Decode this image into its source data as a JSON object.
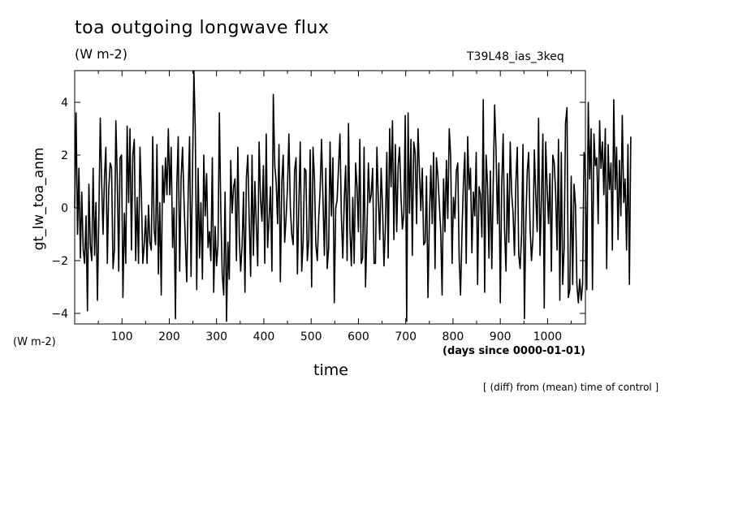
{
  "header": {
    "title": "toa outgoing longwave flux",
    "units": "(W m-2)",
    "run_name": "T39L48_ias_3keq"
  },
  "footer": {
    "y_units_bottom": "(W m-2)",
    "x_units": "(days since 0000-01-01)",
    "x_label": "time",
    "note": "[ (diff) from (mean) time of control ]"
  },
  "chart_data": {
    "type": "line",
    "title": "toa outgoing longwave flux",
    "subtitle": "(W m-2)",
    "xlabel": "time",
    "ylabel": "gt_lw_toa_anm",
    "xlim": [
      0,
      1080
    ],
    "ylim": [
      -4.4,
      5.2
    ],
    "x_ticks": [
      100,
      200,
      300,
      400,
      500,
      600,
      700,
      800,
      900,
      1000
    ],
    "y_ticks": [
      -4,
      -2,
      0,
      2,
      4
    ],
    "grid": false,
    "x_step": 3,
    "series": [
      {
        "values": [
          0.0,
          3.6,
          -1.0,
          1.5,
          -1.9,
          0.6,
          -1.6,
          -2.1,
          -0.3,
          -3.9,
          0.9,
          -1.4,
          -2.0,
          1.5,
          -1.8,
          0.2,
          -3.5,
          -0.4,
          3.4,
          1.0,
          -1.0,
          1.2,
          2.3,
          -2.1,
          0.7,
          1.7,
          1.5,
          -2.3,
          -1.6,
          3.3,
          1.2,
          -2.4,
          1.9,
          2.0,
          -3.4,
          -0.2,
          -2.1,
          3.1,
          0.2,
          3.0,
          -1.6,
          2.0,
          2.6,
          -2.0,
          0.4,
          -2.1,
          2.3,
          0.6,
          -2.1,
          -1.4,
          -0.3,
          -2.1,
          0.1,
          -1.3,
          -1.6,
          2.7,
          -0.8,
          -1.4,
          2.4,
          -2.5,
          0.2,
          -3.3,
          1.6,
          0.2,
          1.9,
          0.5,
          3.0,
          0.5,
          2.3,
          -1.5,
          0.0,
          -4.2,
          0.9,
          2.7,
          -2.4,
          1.1,
          2.3,
          0.4,
          -1.3,
          -2.8,
          0.6,
          2.7,
          -2.6,
          1.2,
          5.2,
          3.0,
          -3.1,
          1.5,
          -1.9,
          0.2,
          -2.7,
          2.0,
          -0.3,
          1.3,
          -1.5,
          -0.9,
          -2.0,
          1.9,
          -3.2,
          -0.7,
          -2.2,
          -1.4,
          3.6,
          -0.2,
          -2.5,
          -3.3,
          0.6,
          -4.3,
          -1.3,
          -2.7,
          1.8,
          -0.2,
          0.8,
          1.1,
          -2.0,
          2.3,
          -1.1,
          -2.4,
          -1.4,
          0.6,
          -3.2,
          1.1,
          2.0,
          -0.4,
          -2.6,
          2.0,
          -1.8,
          1.0,
          -0.6,
          -2.2,
          2.5,
          0.3,
          -0.5,
          1.6,
          -2.1,
          2.8,
          -1.5,
          -0.4,
          0.8,
          -2.4,
          4.3,
          1.6,
          1.0,
          -0.6,
          2.4,
          -2.8,
          1.0,
          2.0,
          -1.3,
          -0.4,
          0.8,
          2.8,
          0.0,
          -1.0,
          -1.4,
          1.4,
          1.9,
          -2.5,
          0.2,
          2.5,
          -2.4,
          -1.3,
          1.5,
          1.4,
          -2.0,
          -1.2,
          2.2,
          -3.0,
          2.3,
          1.1,
          -1.4,
          -2.0,
          -0.4,
          0.7,
          2.6,
          0.3,
          -1.8,
          1.5,
          -2.3,
          -1.5,
          2.5,
          -0.3,
          1.9,
          -3.6,
          0.0,
          0.3,
          1.6,
          2.8,
          -0.4,
          -1.9,
          0.3,
          1.6,
          -2.0,
          3.2,
          -0.8,
          -2.2,
          0.4,
          -2.1,
          1.7,
          0.8,
          -0.9,
          2.6,
          -2.1,
          -1.9,
          2.3,
          -3.0,
          -0.9,
          1.7,
          0.2,
          0.5,
          1.5,
          -2.1,
          -2.1,
          2.3,
          0.4,
          -1.2,
          1.5,
          0.1,
          -2.2,
          -0.8,
          2.1,
          -1.9,
          3.0,
          0.8,
          3.3,
          -1.2,
          2.4,
          -0.9,
          1.6,
          2.3,
          0.4,
          -0.8,
          -0.2,
          3.5,
          -4.3,
          3.6,
          -0.2,
          2.6,
          -1.8,
          2.5,
          2.1,
          -0.6,
          3.0,
          1.4,
          -0.1,
          1.5,
          -1.4,
          -1.3,
          1.2,
          -3.4,
          -0.5,
          1.6,
          -0.6,
          2.1,
          -2.3,
          1.9,
          1.2,
          0.2,
          -0.9,
          -3.3,
          1.1,
          -0.9,
          1.8,
          -0.4,
          3.0,
          2.0,
          -2.1,
          0.4,
          -0.4,
          1.4,
          1.7,
          -1.9,
          -3.3,
          -0.9,
          0.9,
          2.1,
          -2.1,
          2.7,
          0.7,
          1.5,
          -1.7,
          0.6,
          -0.3,
          2.1,
          -2.9,
          0.8,
          0.5,
          -1.1,
          4.1,
          -3.2,
          2.0,
          0.9,
          -1.9,
          1.4,
          -2.3,
          0.8,
          3.9,
          2.2,
          -0.6,
          1.7,
          -3.6,
          0.8,
          2.8,
          -0.8,
          -2.4,
          1.3,
          -1.3,
          2.5,
          0.6,
          -0.2,
          -1.8,
          1.0,
          2.3,
          -1.8,
          -2.3,
          -1.0,
          2.4,
          -4.2,
          -0.6,
          1.4,
          2.1,
          -0.8,
          -2.0,
          -1.1,
          2.2,
          0.5,
          -0.9,
          3.4,
          -1.8,
          0.3,
          2.8,
          -3.8,
          2.5,
          0.8,
          -0.6,
          1.3,
          -2.4,
          2.0,
          1.7,
          0.6,
          -1.6,
          2.6,
          -3.5,
          2.1,
          -2.9,
          -1.5,
          3.2,
          3.8,
          -3.4,
          -3.1,
          1.2,
          -2.9,
          0.9,
          0.1,
          -2.9,
          -3.6,
          -2.7,
          -3.5,
          -2.9,
          2.1,
          1.4,
          -3.1,
          4.0,
          1.1,
          3.0,
          -3.1,
          2.8,
          1.6,
          1.9,
          -0.6,
          3.3,
          1.5,
          2.5,
          0.5,
          3.0,
          -2.3,
          2.4,
          0.7,
          1.7,
          -1.6,
          4.1,
          0.7,
          2.3,
          -1.2,
          1.8,
          -0.3,
          3.5,
          0.2,
          1.1,
          -1.6,
          2.4,
          -2.9,
          2.7
        ]
      }
    ]
  }
}
